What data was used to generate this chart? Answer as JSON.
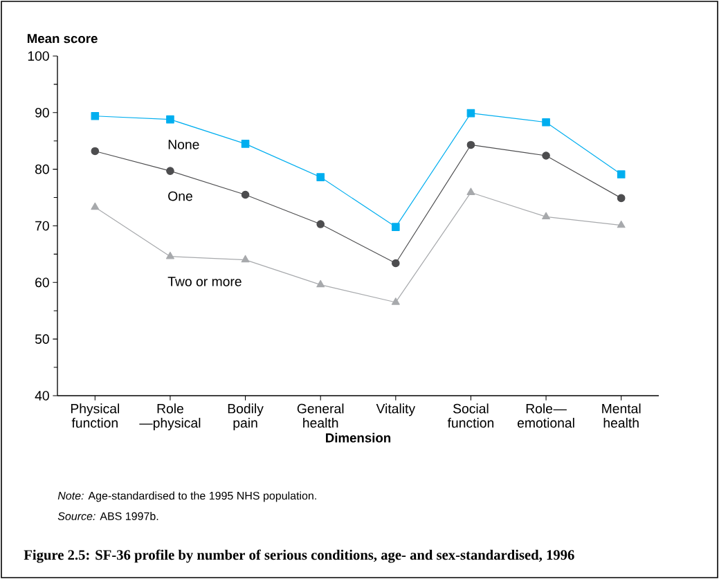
{
  "chart_data": {
    "type": "line",
    "title": "Figure 2.5: SF-36 profile by number of serious conditions, age- and sex-standardised, 1996",
    "xlabel": "Dimension",
    "ylabel": "Mean score",
    "categories": [
      "Physical function",
      "Role—physical",
      "Bodily pain",
      "General health",
      "Vitality",
      "Social function",
      "Role—emotional",
      "Mental health"
    ],
    "series": [
      {
        "name": "None",
        "color": "#00aeef",
        "marker": "square",
        "values": [
          89.4,
          88.8,
          84.5,
          78.6,
          69.8,
          89.9,
          88.3,
          79.1
        ]
      },
      {
        "name": "One",
        "color": "#4d4d4f",
        "marker": "circle",
        "values": [
          83.2,
          79.7,
          75.5,
          70.3,
          63.4,
          84.3,
          82.4,
          74.9
        ]
      },
      {
        "name": "Two or more",
        "color": "#a7a9ac",
        "marker": "triangle",
        "values": [
          73.3,
          64.6,
          64.0,
          59.6,
          56.5,
          75.9,
          71.6,
          70.1
        ]
      }
    ],
    "ylim": [
      40,
      100
    ],
    "yticks": [
      40,
      {
        "value": 45,
        "label": null
      },
      50,
      {
        "value": 55,
        "label": null
      },
      60,
      {
        "value": 65,
        "label": null
      },
      70,
      {
        "value": 75,
        "label": null
      },
      80,
      {
        "value": 85,
        "label": null
      },
      90,
      {
        "value": 95,
        "label": null
      },
      100
    ],
    "annotations": [
      "*Note:* Age-standardised to the 1995 NHS population.",
      "*Source:* ABS 1997b."
    ]
  }
}
